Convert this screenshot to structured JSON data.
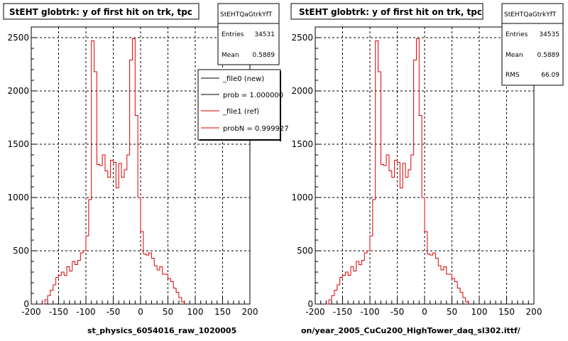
{
  "colors": {
    "ref": "#dd0000",
    "new": "#000000",
    "grid": "#000000",
    "frame": "#000000"
  },
  "footer": "",
  "chart_data": [
    {
      "type": "histogram",
      "title": "StEHT globtrk: y of first hit on trk, tpc",
      "xlabel": "st_physics_6054016_raw_1020005",
      "xlim": [
        -200,
        200
      ],
      "ylim": [
        0,
        2600
      ],
      "grid": true,
      "xticks": [
        "-200",
        "-150",
        "-100",
        "-50",
        "0",
        "50",
        "100",
        "150",
        "200"
      ],
      "yticks": [
        "0",
        "500",
        "1000",
        "1500",
        "2000",
        "2500"
      ],
      "stats": {
        "name": "StEHTQaGtrkYfT",
        "rows": [
          {
            "label": "Entries",
            "value": "34531"
          },
          {
            "label": "Mean",
            "value": "0.5889"
          }
        ]
      },
      "legend": {
        "entries": [
          {
            "label": "_file0 (new)",
            "color": "#000000"
          },
          {
            "label": "prob = 1.000000",
            "color": "#000000"
          },
          {
            "label": "_file1 (ref)",
            "color": "#dd0000"
          },
          {
            "label": "probN = 0.999927",
            "color": "#dd0000"
          }
        ]
      },
      "bin_edges_start": -180,
      "bin_width": 5,
      "values": [
        0,
        40,
        80,
        130,
        180,
        250,
        270,
        300,
        270,
        350,
        310,
        400,
        370,
        410,
        480,
        500,
        640,
        980,
        2470,
        2180,
        1310,
        1300,
        1400,
        1250,
        1190,
        1350,
        1330,
        1090,
        1320,
        1190,
        1260,
        1400,
        2290,
        2490,
        1770,
        1000,
        680,
        470,
        460,
        480,
        430,
        360,
        320,
        350,
        280,
        280,
        240,
        210,
        150,
        110,
        60,
        20
      ]
    },
    {
      "type": "histogram",
      "title": "StEHT globtrk: y of first hit on trk, tpc",
      "xlabel": "on/year_2005_CuCu200_HighTower_daq_sl302.ittf/",
      "xlim": [
        -200,
        200
      ],
      "ylim": [
        0,
        2600
      ],
      "grid": true,
      "xticks": [
        "-200",
        "-150",
        "-100",
        "-50",
        "0",
        "50",
        "100",
        "150",
        "200"
      ],
      "yticks": [
        "0",
        "500",
        "1000",
        "1500",
        "2000",
        "2500"
      ],
      "stats": {
        "name": "StEHTQaGtrkYfT",
        "rows": [
          {
            "label": "Entries",
            "value": "34535"
          },
          {
            "label": "Mean",
            "value": "0.5889"
          },
          {
            "label": "RMS",
            "value": "66.09"
          }
        ]
      },
      "bin_edges_start": -180,
      "bin_width": 5,
      "values": [
        0,
        40,
        80,
        130,
        180,
        250,
        270,
        300,
        270,
        350,
        310,
        400,
        370,
        410,
        480,
        500,
        640,
        980,
        2470,
        2180,
        1310,
        1300,
        1400,
        1250,
        1190,
        1350,
        1330,
        1090,
        1320,
        1190,
        1260,
        1400,
        2290,
        2490,
        1770,
        1000,
        680,
        470,
        460,
        480,
        430,
        360,
        320,
        350,
        280,
        280,
        240,
        210,
        150,
        110,
        60,
        20
      ]
    }
  ]
}
